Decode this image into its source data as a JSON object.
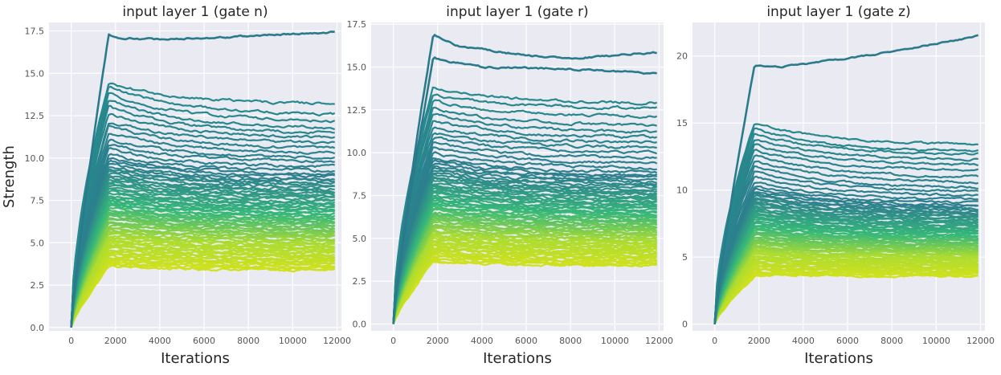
{
  "chart_data": [
    {
      "type": "line",
      "title": "input layer 1 (gate n)",
      "xlabel": "Iterations",
      "ylabel": "Strength",
      "xlim": [
        -1000,
        12200
      ],
      "ylim": [
        -0.2,
        18.0
      ],
      "xticks": [
        0,
        2000,
        4000,
        6000,
        8000,
        10000,
        12000
      ],
      "yticks": [
        0.0,
        2.5,
        5.0,
        7.5,
        10.0,
        12.5,
        15.0,
        17.5
      ],
      "xtick_labels": [
        "0",
        "2000",
        "4000",
        "6000",
        "8000",
        "10000",
        "12000"
      ],
      "ytick_labels": [
        "0.0",
        "2.5",
        "5.0",
        "7.5",
        "10.0",
        "12.5",
        "15.0",
        "17.5"
      ],
      "grid": true,
      "colormap": [
        "#21908c",
        "#2d7f8e",
        "#35b779",
        "#addc30",
        "#d0e11c"
      ],
      "series_summary": {
        "count": 80,
        "x_start": 0,
        "x_end": 11900,
        "peak_x": 1700,
        "top_series_points": [
          [
            0,
            0
          ],
          [
            1700,
            17.3
          ],
          [
            2000,
            17.1
          ],
          [
            4000,
            17.0
          ],
          [
            8000,
            17.2
          ],
          [
            11900,
            17.45
          ]
        ],
        "upper_peaks": [
          14.4,
          14.2,
          13.8,
          13.4,
          13.0,
          12.6,
          12.2,
          11.9,
          11.5,
          11.1,
          10.8,
          10.5
        ],
        "upper_finals": [
          13.2,
          12.6,
          12.2,
          11.8,
          11.5,
          11.2,
          10.9,
          10.6,
          10.3,
          10.0,
          9.8,
          9.5
        ],
        "lowest_peak": 3.6,
        "lowest_final": 3.4
      }
    },
    {
      "type": "line",
      "title": "input layer 1 (gate r)",
      "xlabel": "Iterations",
      "ylabel": "",
      "xlim": [
        -1000,
        12200
      ],
      "ylim": [
        -0.4,
        17.6
      ],
      "xticks": [
        0,
        2000,
        4000,
        6000,
        8000,
        10000,
        12000
      ],
      "yticks": [
        0.0,
        2.5,
        5.0,
        7.5,
        10.0,
        12.5,
        15.0,
        17.5
      ],
      "xtick_labels": [
        "0",
        "2000",
        "4000",
        "6000",
        "8000",
        "10000",
        "12000"
      ],
      "ytick_labels": [
        "0.0",
        "2.5",
        "5.0",
        "7.5",
        "10.0",
        "12.5",
        "15.0",
        "17.5"
      ],
      "grid": true,
      "colormap": [
        "#21908c",
        "#2d7f8e",
        "#35b779",
        "#addc30",
        "#d0e11c"
      ],
      "series_summary": {
        "count": 80,
        "x_start": 0,
        "x_end": 11900,
        "peak_x": 1800,
        "top_series_points": [
          [
            0,
            0
          ],
          [
            1800,
            16.9
          ],
          [
            3000,
            16.2
          ],
          [
            6000,
            15.7
          ],
          [
            8000,
            15.5
          ],
          [
            11900,
            15.85
          ]
        ],
        "second_series_points": [
          [
            0,
            0
          ],
          [
            1800,
            15.5
          ],
          [
            4000,
            15.0
          ],
          [
            8000,
            14.9
          ],
          [
            11900,
            14.6
          ]
        ],
        "upper_peaks": [
          13.8,
          13.4,
          13.0,
          12.6,
          12.3,
          11.9,
          11.5,
          11.2,
          10.9,
          10.6,
          10.3,
          10.0
        ],
        "upper_finals": [
          12.9,
          12.6,
          12.1,
          11.6,
          11.2,
          10.9,
          10.6,
          10.3,
          10.0,
          9.7,
          9.4,
          9.1
        ],
        "lowest_peak": 3.6,
        "lowest_final": 3.4
      }
    },
    {
      "type": "line",
      "title": "input layer 1 (gate z)",
      "xlabel": "Iterations",
      "ylabel": "",
      "xlim": [
        -1000,
        12200
      ],
      "ylim": [
        -0.5,
        22.5
      ],
      "xticks": [
        0,
        2000,
        4000,
        6000,
        8000,
        10000,
        12000
      ],
      "yticks": [
        0,
        5,
        10,
        15,
        20
      ],
      "xtick_labels": [
        "0",
        "2000",
        "4000",
        "6000",
        "8000",
        "10000",
        "12000"
      ],
      "ytick_labels": [
        "0",
        "5",
        "10",
        "15",
        "20"
      ],
      "grid": true,
      "colormap": [
        "#21908c",
        "#2d7f8e",
        "#35b779",
        "#addc30",
        "#d0e11c"
      ],
      "series_summary": {
        "count": 80,
        "x_start": 0,
        "x_end": 11900,
        "peak_x": 1800,
        "top_series_points": [
          [
            0,
            0
          ],
          [
            1800,
            19.3
          ],
          [
            3000,
            19.2
          ],
          [
            6000,
            19.8
          ],
          [
            9000,
            20.6
          ],
          [
            11900,
            21.5
          ]
        ],
        "upper_peaks": [
          15.0,
          14.6,
          14.2,
          13.8,
          13.4,
          13.0,
          12.6,
          12.2,
          11.8,
          11.4,
          11.0,
          10.6
        ],
        "upper_finals": [
          13.4,
          12.9,
          12.7,
          12.3,
          11.9,
          11.5,
          11.0,
          10.6,
          10.2,
          9.9,
          9.6,
          9.3
        ],
        "lowest_peak": 3.6,
        "lowest_final": 3.6
      }
    }
  ]
}
